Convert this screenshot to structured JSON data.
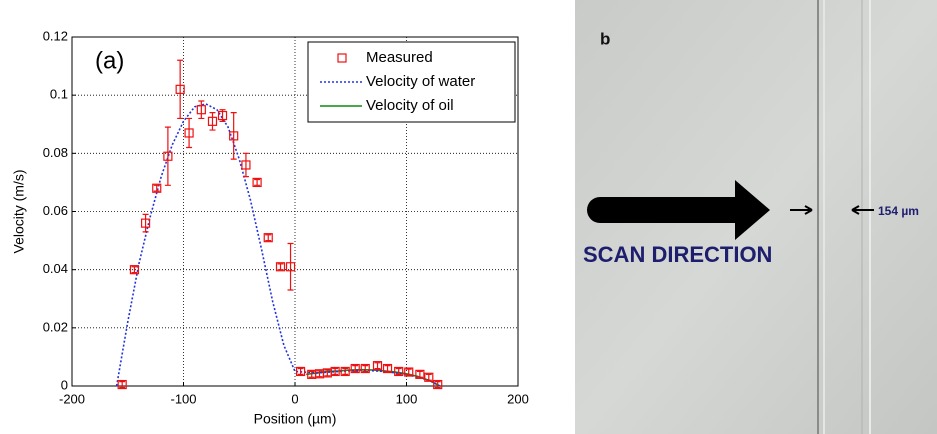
{
  "chart_data": {
    "type": "line",
    "annotation": "(a)",
    "xlabel": "Position (µm)",
    "ylabel": "Velocity (m/s)",
    "xlim": [
      -200,
      200
    ],
    "ylim": [
      0,
      0.12
    ],
    "xticks": [
      -200,
      -100,
      0,
      100,
      200
    ],
    "yticks": [
      0,
      0.02,
      0.04,
      0.06,
      0.08,
      0.1,
      0.12
    ],
    "grid": true,
    "legend": "upper right",
    "series": [
      {
        "name": "Measured",
        "color": "#ee1111",
        "marker": "square",
        "x": [
          -155,
          -144,
          -134,
          -124,
          -114,
          -103,
          -95,
          -84,
          -74,
          -65,
          -55,
          -44,
          -34,
          -24,
          -13,
          -4,
          5,
          15,
          22,
          29,
          36,
          45,
          54,
          63,
          74,
          83,
          93,
          102,
          112,
          120,
          128
        ],
        "values": [
          0.0005,
          0.04,
          0.056,
          0.068,
          0.079,
          0.102,
          0.087,
          0.095,
          0.091,
          0.093,
          0.086,
          0.076,
          0.07,
          0.051,
          0.041,
          0.041,
          0.005,
          0.004,
          0.0042,
          0.0045,
          0.005,
          0.005,
          0.006,
          0.006,
          0.007,
          0.006,
          0.005,
          0.0048,
          0.004,
          0.003,
          0.0005
        ],
        "errors": [
          0.001,
          0.001,
          0.003,
          0.001,
          0.01,
          0.01,
          0.005,
          0.003,
          0.003,
          0.002,
          0.008,
          0.004,
          0.001,
          0.001,
          0.001,
          0.008,
          0.001,
          0.001,
          0.001,
          0.001,
          0.001,
          0.001,
          0.001,
          0.001,
          0.001,
          0.001,
          0.001,
          0.001,
          0.001,
          0.001,
          0.001
        ]
      },
      {
        "name": "Velocity of water",
        "color": "#2233dd",
        "dash": true,
        "x": [
          -160,
          -150,
          -140,
          -130,
          -120,
          -110,
          -100,
          -90,
          -80,
          -70,
          -60,
          -50,
          -40,
          -30,
          -20,
          -10,
          0,
          20,
          40,
          60,
          80,
          100,
          120,
          130
        ],
        "values": [
          0,
          0.022,
          0.042,
          0.058,
          0.072,
          0.083,
          0.091,
          0.096,
          0.097,
          0.095,
          0.089,
          0.078,
          0.064,
          0.047,
          0.029,
          0.014,
          0.005,
          0.0045,
          0.005,
          0.0055,
          0.005,
          0.004,
          0.002,
          0
        ]
      },
      {
        "name": "Velocity of oil",
        "color": "#118811",
        "x": [
          10,
          20,
          30,
          40,
          50,
          60,
          70,
          80,
          90,
          100,
          110,
          120,
          130
        ],
        "values": [
          0.004,
          0.0045,
          0.005,
          0.0052,
          0.0055,
          0.0056,
          0.0055,
          0.0052,
          0.0048,
          0.0042,
          0.0033,
          0.002,
          0
        ]
      }
    ]
  },
  "photo": {
    "label": "b",
    "caption": "SCAN DIRECTION",
    "width_label": "154 µm"
  }
}
